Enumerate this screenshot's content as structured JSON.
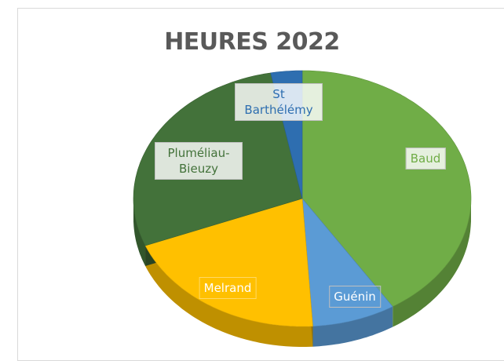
{
  "chart_data": {
    "type": "pie",
    "title": "HEURES 2022",
    "categories": [
      "Baud",
      "Guénin",
      "Melrand",
      "Pluméliau-Bieuzy",
      "St Barthélémy"
    ],
    "values": [
      41,
      8,
      20,
      28,
      3
    ],
    "colors": [
      "#70ad47",
      "#5b9bd5",
      "#ffc000",
      "#43723a",
      "#2e6eb0"
    ]
  }
}
